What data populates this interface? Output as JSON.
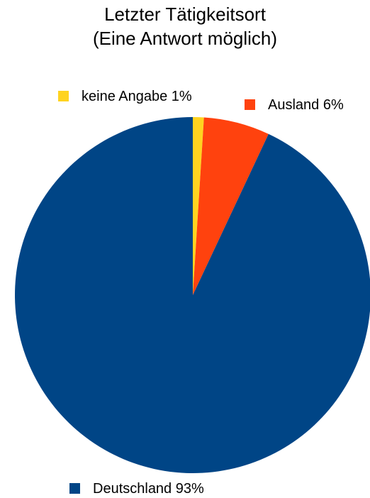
{
  "chart_data": {
    "type": "pie",
    "title": "Letzter Tätigkeitsort",
    "subtitle": "(Eine Antwort möglich)",
    "categories": [
      "keine Angabe",
      "Ausland",
      "Deutschland"
    ],
    "values": [
      1,
      6,
      93
    ],
    "value_labels": [
      "1%",
      "6%",
      "93%"
    ],
    "colors": [
      "#ffd320",
      "#ff420e",
      "#004586"
    ]
  }
}
